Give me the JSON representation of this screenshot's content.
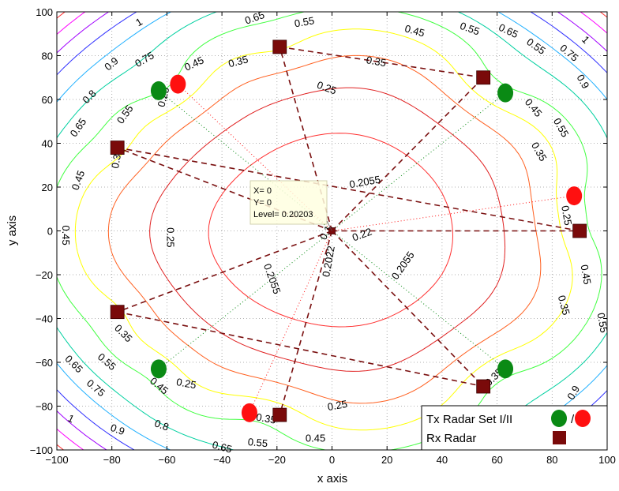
{
  "chart_data": {
    "type": "contour",
    "xlabel": "x axis",
    "ylabel": "y axis",
    "xlim": [
      -100,
      100
    ],
    "ylim": [
      -100,
      100
    ],
    "xticks": [
      -100,
      -80,
      -60,
      -40,
      -20,
      0,
      20,
      40,
      60,
      80,
      100
    ],
    "yticks": [
      -100,
      -80,
      -60,
      -40,
      -20,
      0,
      20,
      40,
      60,
      80,
      100
    ],
    "grid": true,
    "colors": {
      "tx1": "#0a8a14",
      "tx2": "#ff1010",
      "rx": "#7a0a0a",
      "dash": "#7a1010"
    },
    "contours": [
      {
        "level": "0.2022",
        "color": "#ff3030"
      },
      {
        "level": "0.2055",
        "color": "#e02020"
      },
      {
        "level": "0.25",
        "color": "#ff6020"
      },
      {
        "level": "0.35",
        "color": "#ffff00"
      },
      {
        "level": "0.45",
        "color": "#40ff40"
      },
      {
        "level": "0.55",
        "color": "#00d0a0"
      },
      {
        "level": "0.65",
        "color": "#20b0ff"
      },
      {
        "level": "0.75",
        "color": "#3030ff"
      },
      {
        "level": "0.8",
        "color": "#a000ff"
      },
      {
        "level": "0.9",
        "color": "#ff00ff"
      },
      {
        "level": "1",
        "color": "#ff3030"
      }
    ],
    "contour_labels": [
      {
        "text": "1",
        "x": -70,
        "y": 95,
        "rot": -30
      },
      {
        "text": "0.65",
        "x": -28,
        "y": 97,
        "rot": -20
      },
      {
        "text": "0.55",
        "x": -10,
        "y": 95,
        "rot": -10
      },
      {
        "text": "0.45",
        "x": 30,
        "y": 91,
        "rot": 15
      },
      {
        "text": "0.55",
        "x": 50,
        "y": 92,
        "rot": 20
      },
      {
        "text": "0.65",
        "x": 64,
        "y": 91,
        "rot": 25
      },
      {
        "text": "0.55",
        "x": 74,
        "y": 84,
        "rot": 35
      },
      {
        "text": "0.75",
        "x": 86,
        "y": 81,
        "rot": 40
      },
      {
        "text": "1",
        "x": 92,
        "y": 87,
        "rot": 45
      },
      {
        "text": "0.9",
        "x": 91,
        "y": 68,
        "rot": 60
      },
      {
        "text": "0.9",
        "x": -80,
        "y": 76,
        "rot": -40
      },
      {
        "text": "0.75",
        "x": -68,
        "y": 78,
        "rot": -30
      },
      {
        "text": "0.45",
        "x": -50,
        "y": 76,
        "rot": -25
      },
      {
        "text": "0.35",
        "x": -34,
        "y": 77,
        "rot": -15
      },
      {
        "text": "0.35",
        "x": 16,
        "y": 77,
        "rot": 10
      },
      {
        "text": "0.25",
        "x": -2,
        "y": 65,
        "rot": 20
      },
      {
        "text": "0.8",
        "x": -88,
        "y": 61,
        "rot": -45
      },
      {
        "text": "0.55",
        "x": -75,
        "y": 53,
        "rot": -55
      },
      {
        "text": "0.65",
        "x": -92,
        "y": 47,
        "rot": -55
      },
      {
        "text": "0.25",
        "x": -61,
        "y": 61,
        "rot": -75
      },
      {
        "text": "0.45",
        "x": 73,
        "y": 56,
        "rot": 50
      },
      {
        "text": "0.55",
        "x": 83,
        "y": 47,
        "rot": 60
      },
      {
        "text": "0.35",
        "x": 75,
        "y": 36,
        "rot": 60
      },
      {
        "text": "0.35",
        "x": -78,
        "y": 33,
        "rot": -80
      },
      {
        "text": "0.45",
        "x": -92,
        "y": 23,
        "rot": -70
      },
      {
        "text": "0.2055",
        "x": 12,
        "y": 22,
        "rot": -10
      },
      {
        "text": "0.25",
        "x": 85,
        "y": 7,
        "rot": 80
      },
      {
        "text": "0.45",
        "x": -97,
        "y": -2,
        "rot": 90
      },
      {
        "text": "0.25",
        "x": -59,
        "y": -3,
        "rot": 90
      },
      {
        "text": "0.22",
        "x": 11,
        "y": -2,
        "rot": -20
      },
      {
        "text": "0.1",
        "x": -2,
        "y": -1,
        "rot": -60
      },
      {
        "text": "0.2022",
        "x": -1,
        "y": -14,
        "rot": -80
      },
      {
        "text": "0.2055",
        "x": -22,
        "y": -22,
        "rot": 70
      },
      {
        "text": "0.2055",
        "x": 26,
        "y": -16,
        "rot": -55
      },
      {
        "text": "0.45",
        "x": 92,
        "y": -20,
        "rot": 80
      },
      {
        "text": "0.35",
        "x": 84,
        "y": -34,
        "rot": 75
      },
      {
        "text": "0.55",
        "x": 98,
        "y": -42,
        "rot": 80
      },
      {
        "text": "0.35",
        "x": -76,
        "y": -47,
        "rot": 45
      },
      {
        "text": "0.65",
        "x": -94,
        "y": -61,
        "rot": 45
      },
      {
        "text": "0.55",
        "x": -82,
        "y": -60,
        "rot": 40
      },
      {
        "text": "0.75",
        "x": -86,
        "y": -72,
        "rot": 40
      },
      {
        "text": "0.45",
        "x": -63,
        "y": -71,
        "rot": 40
      },
      {
        "text": "0.25",
        "x": -53,
        "y": -70,
        "rot": 10
      },
      {
        "text": "0.35",
        "x": 59,
        "y": -67,
        "rot": -45
      },
      {
        "text": "0.25",
        "x": 2,
        "y": -80,
        "rot": -10
      },
      {
        "text": "0.35",
        "x": 40,
        "y": -84,
        "rot": -15
      },
      {
        "text": "0.55",
        "x": 57,
        "y": -88,
        "rot": -30
      },
      {
        "text": "0.9",
        "x": 88,
        "y": -74,
        "rot": -60
      },
      {
        "text": "1",
        "x": -95,
        "y": -86,
        "rot": 25
      },
      {
        "text": "0.9",
        "x": -78,
        "y": -91,
        "rot": 20
      },
      {
        "text": "0.8",
        "x": -62,
        "y": -89,
        "rot": 20
      },
      {
        "text": "0.35",
        "x": -24,
        "y": -86,
        "rot": 10
      },
      {
        "text": "0.55",
        "x": -27,
        "y": -97,
        "rot": 5
      },
      {
        "text": "0.65",
        "x": -40,
        "y": -99,
        "rot": 15
      },
      {
        "text": "0.45",
        "x": -6,
        "y": -95,
        "rot": 0
      }
    ],
    "tx1_points": [
      [
        -63,
        64
      ],
      [
        63,
        63
      ],
      [
        -63,
        -63
      ],
      [
        63,
        -63
      ]
    ],
    "tx2_points": [
      [
        -56,
        67
      ],
      [
        88,
        16
      ],
      [
        -30,
        -83
      ]
    ],
    "rx_points": [
      [
        -19,
        84
      ],
      [
        55,
        70
      ],
      [
        -78,
        38
      ],
      [
        90,
        0
      ],
      [
        -78,
        -37
      ],
      [
        55,
        -71
      ],
      [
        -19,
        -84
      ],
      [
        0,
        0
      ]
    ],
    "datatip": {
      "lines": [
        "X= 0",
        "Y= 0",
        "Level= 0.20203"
      ]
    },
    "legend": {
      "position": "bottom-right",
      "entries": [
        "Tx Radar Set I/II",
        "Rx Radar"
      ],
      "separator": "/"
    }
  }
}
